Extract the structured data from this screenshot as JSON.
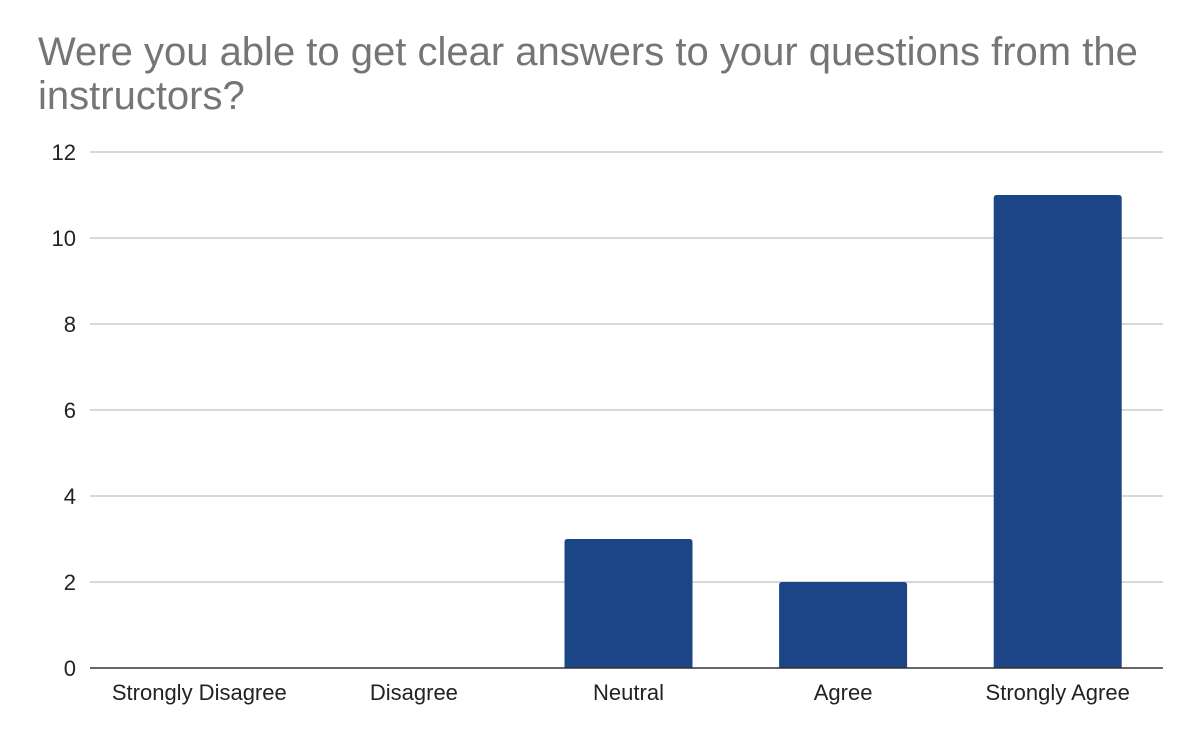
{
  "chart_data": {
    "type": "bar",
    "title": "Were you able to get clear answers to your questions from the instructors?",
    "xlabel": "",
    "ylabel": "",
    "categories": [
      "Strongly Disagree",
      "Disagree",
      "Neutral",
      "Agree",
      "Strongly Agree"
    ],
    "values": [
      0,
      0,
      3,
      2,
      11
    ],
    "ylim": [
      0,
      12
    ],
    "yticks": [
      0,
      2,
      4,
      6,
      8,
      10,
      12
    ],
    "grid": true,
    "bar_color": "#1c4587",
    "legend": "none"
  }
}
